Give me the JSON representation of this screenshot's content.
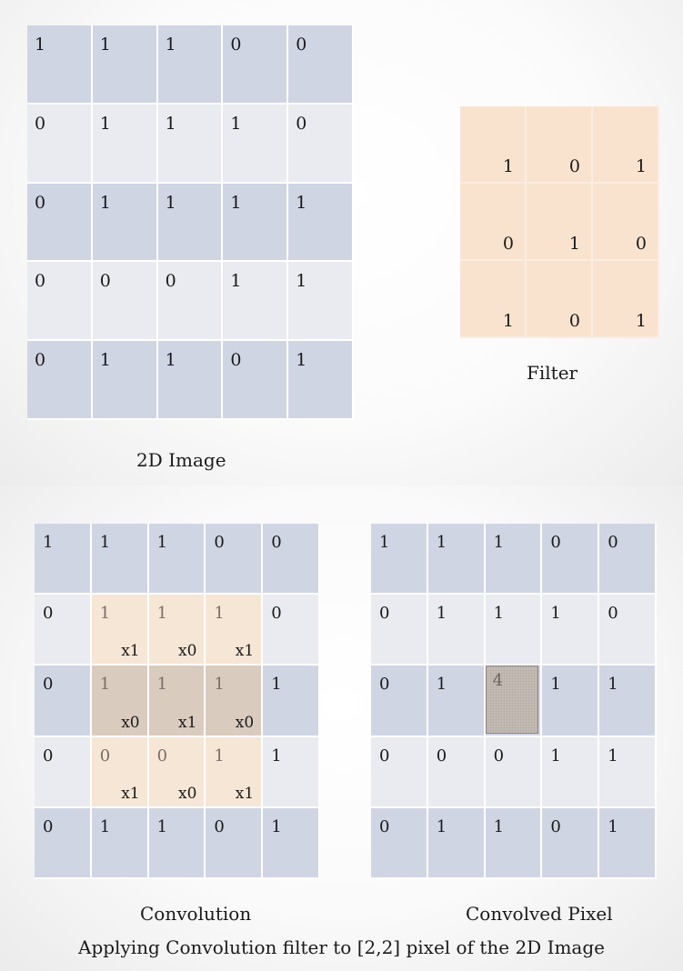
{
  "image": {
    "caption": "2D Image",
    "rows": [
      [
        "1",
        "1",
        "1",
        "0",
        "0"
      ],
      [
        "0",
        "1",
        "1",
        "1",
        "0"
      ],
      [
        "0",
        "1",
        "1",
        "1",
        "1"
      ],
      [
        "0",
        "0",
        "0",
        "1",
        "1"
      ],
      [
        "0",
        "1",
        "1",
        "0",
        "1"
      ]
    ]
  },
  "filter": {
    "caption": "Filter",
    "rows": [
      [
        "1",
        "0",
        "1"
      ],
      [
        "0",
        "1",
        "0"
      ],
      [
        "1",
        "0",
        "1"
      ]
    ]
  },
  "convolution": {
    "caption": "Convolution",
    "rows": [
      [
        "1",
        "1",
        "1",
        "0",
        "0"
      ],
      [
        "0",
        "1",
        "1",
        "1",
        "0"
      ],
      [
        "0",
        "1",
        "1",
        "1",
        "1"
      ],
      [
        "0",
        "0",
        "0",
        "1",
        "1"
      ],
      [
        "0",
        "1",
        "1",
        "0",
        "1"
      ]
    ],
    "multipliers": [
      [
        "x1",
        "x0",
        "x1"
      ],
      [
        "x0",
        "x1",
        "x0"
      ],
      [
        "x1",
        "x0",
        "x1"
      ]
    ]
  },
  "convolved": {
    "caption": "Convolved Pixel",
    "rows": [
      [
        "1",
        "1",
        "1",
        "0",
        "0"
      ],
      [
        "0",
        "1",
        "1",
        "1",
        "0"
      ],
      [
        "0",
        "1",
        "4",
        "1",
        "1"
      ],
      [
        "0",
        "0",
        "0",
        "1",
        "1"
      ],
      [
        "0",
        "1",
        "1",
        "0",
        "1"
      ]
    ]
  },
  "footer": "Applying Convolution filter to [2,2] pixel  of the 2D Image"
}
